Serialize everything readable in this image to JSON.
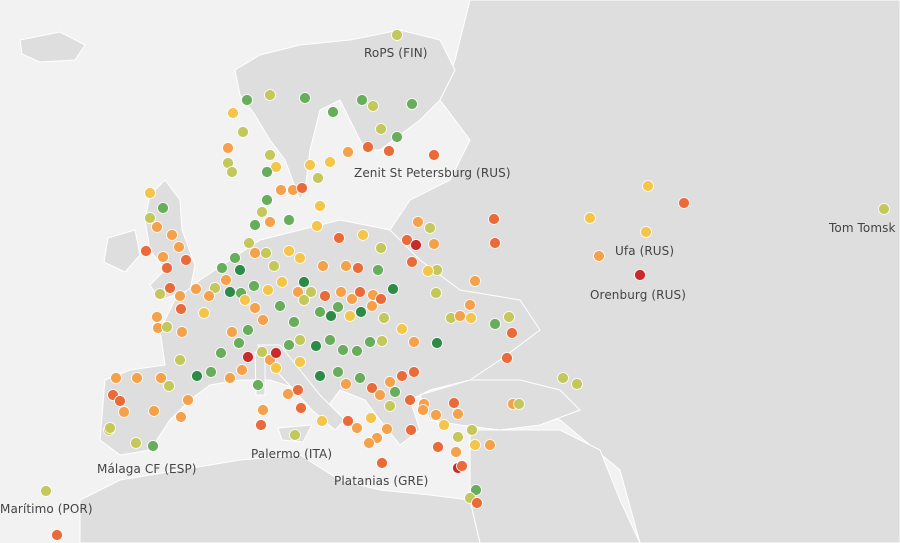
{
  "colors": {
    "sea": "#f2f2f2",
    "land": "#dedede",
    "border": "#ffffff",
    "label_text": "#444444",
    "scale": {
      "dark_green": "#2e8b47",
      "green": "#67ad5b",
      "yellow_green": "#c4c85a",
      "yellow": "#f3c64a",
      "orange": "#f5a14b",
      "red_orange": "#ea6a3a",
      "red": "#c92a2a"
    }
  },
  "labels": [
    {
      "id": "rops",
      "text": "RoPS (FIN)"
    },
    {
      "id": "zenit",
      "text": "Zenit St Petersburg (RUS)"
    },
    {
      "id": "ufa",
      "text": "Ufa (RUS)"
    },
    {
      "id": "orenburg",
      "text": "Orenburg (RUS)"
    },
    {
      "id": "tom",
      "text": "Tom Tomsk"
    },
    {
      "id": "palermo",
      "text": "Palermo (ITA)"
    },
    {
      "id": "platanias",
      "text": "Platanias (GRE)"
    },
    {
      "id": "malaga",
      "text": "Málaga CF (ESP)"
    },
    {
      "id": "maritimo",
      "text": "Marítimo (POR)"
    }
  ]
}
